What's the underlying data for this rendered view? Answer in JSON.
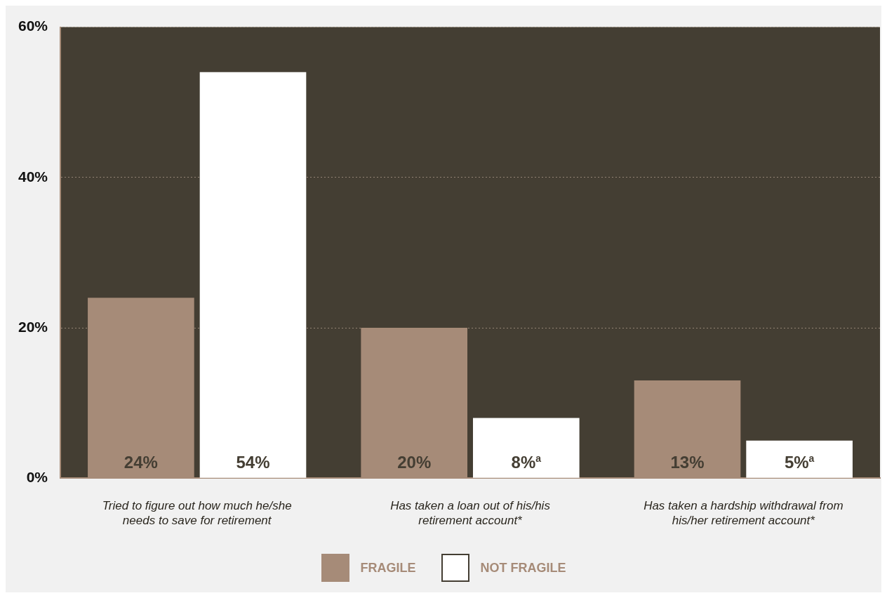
{
  "chart_data": {
    "type": "bar",
    "categories": [
      "Tried to figure out how much he/she needs to save for retirement",
      "Has taken a loan out of his/his retirement account*",
      "Has taken a hardship withdrawal from his/her retirement account*"
    ],
    "series": [
      {
        "name": "FRAGILE",
        "color": "#a68b78",
        "values": [
          24,
          20,
          13
        ],
        "value_labels": [
          "24%",
          "20%",
          "13%"
        ]
      },
      {
        "name": "NOT FRAGILE",
        "color": "#ffffff",
        "values": [
          54,
          8,
          5
        ],
        "value_labels": [
          "54%",
          "8%$^{a}$",
          "5%$^{a}$"
        ]
      }
    ],
    "ylim": [
      0,
      60
    ],
    "yticks": [
      {
        "value": 0,
        "label": "0%"
      },
      {
        "value": 20,
        "label": "20%"
      },
      {
        "value": 40,
        "label": "40%"
      },
      {
        "value": 60,
        "label": "60%"
      }
    ],
    "grid": "y",
    "legend": "bottom"
  }
}
